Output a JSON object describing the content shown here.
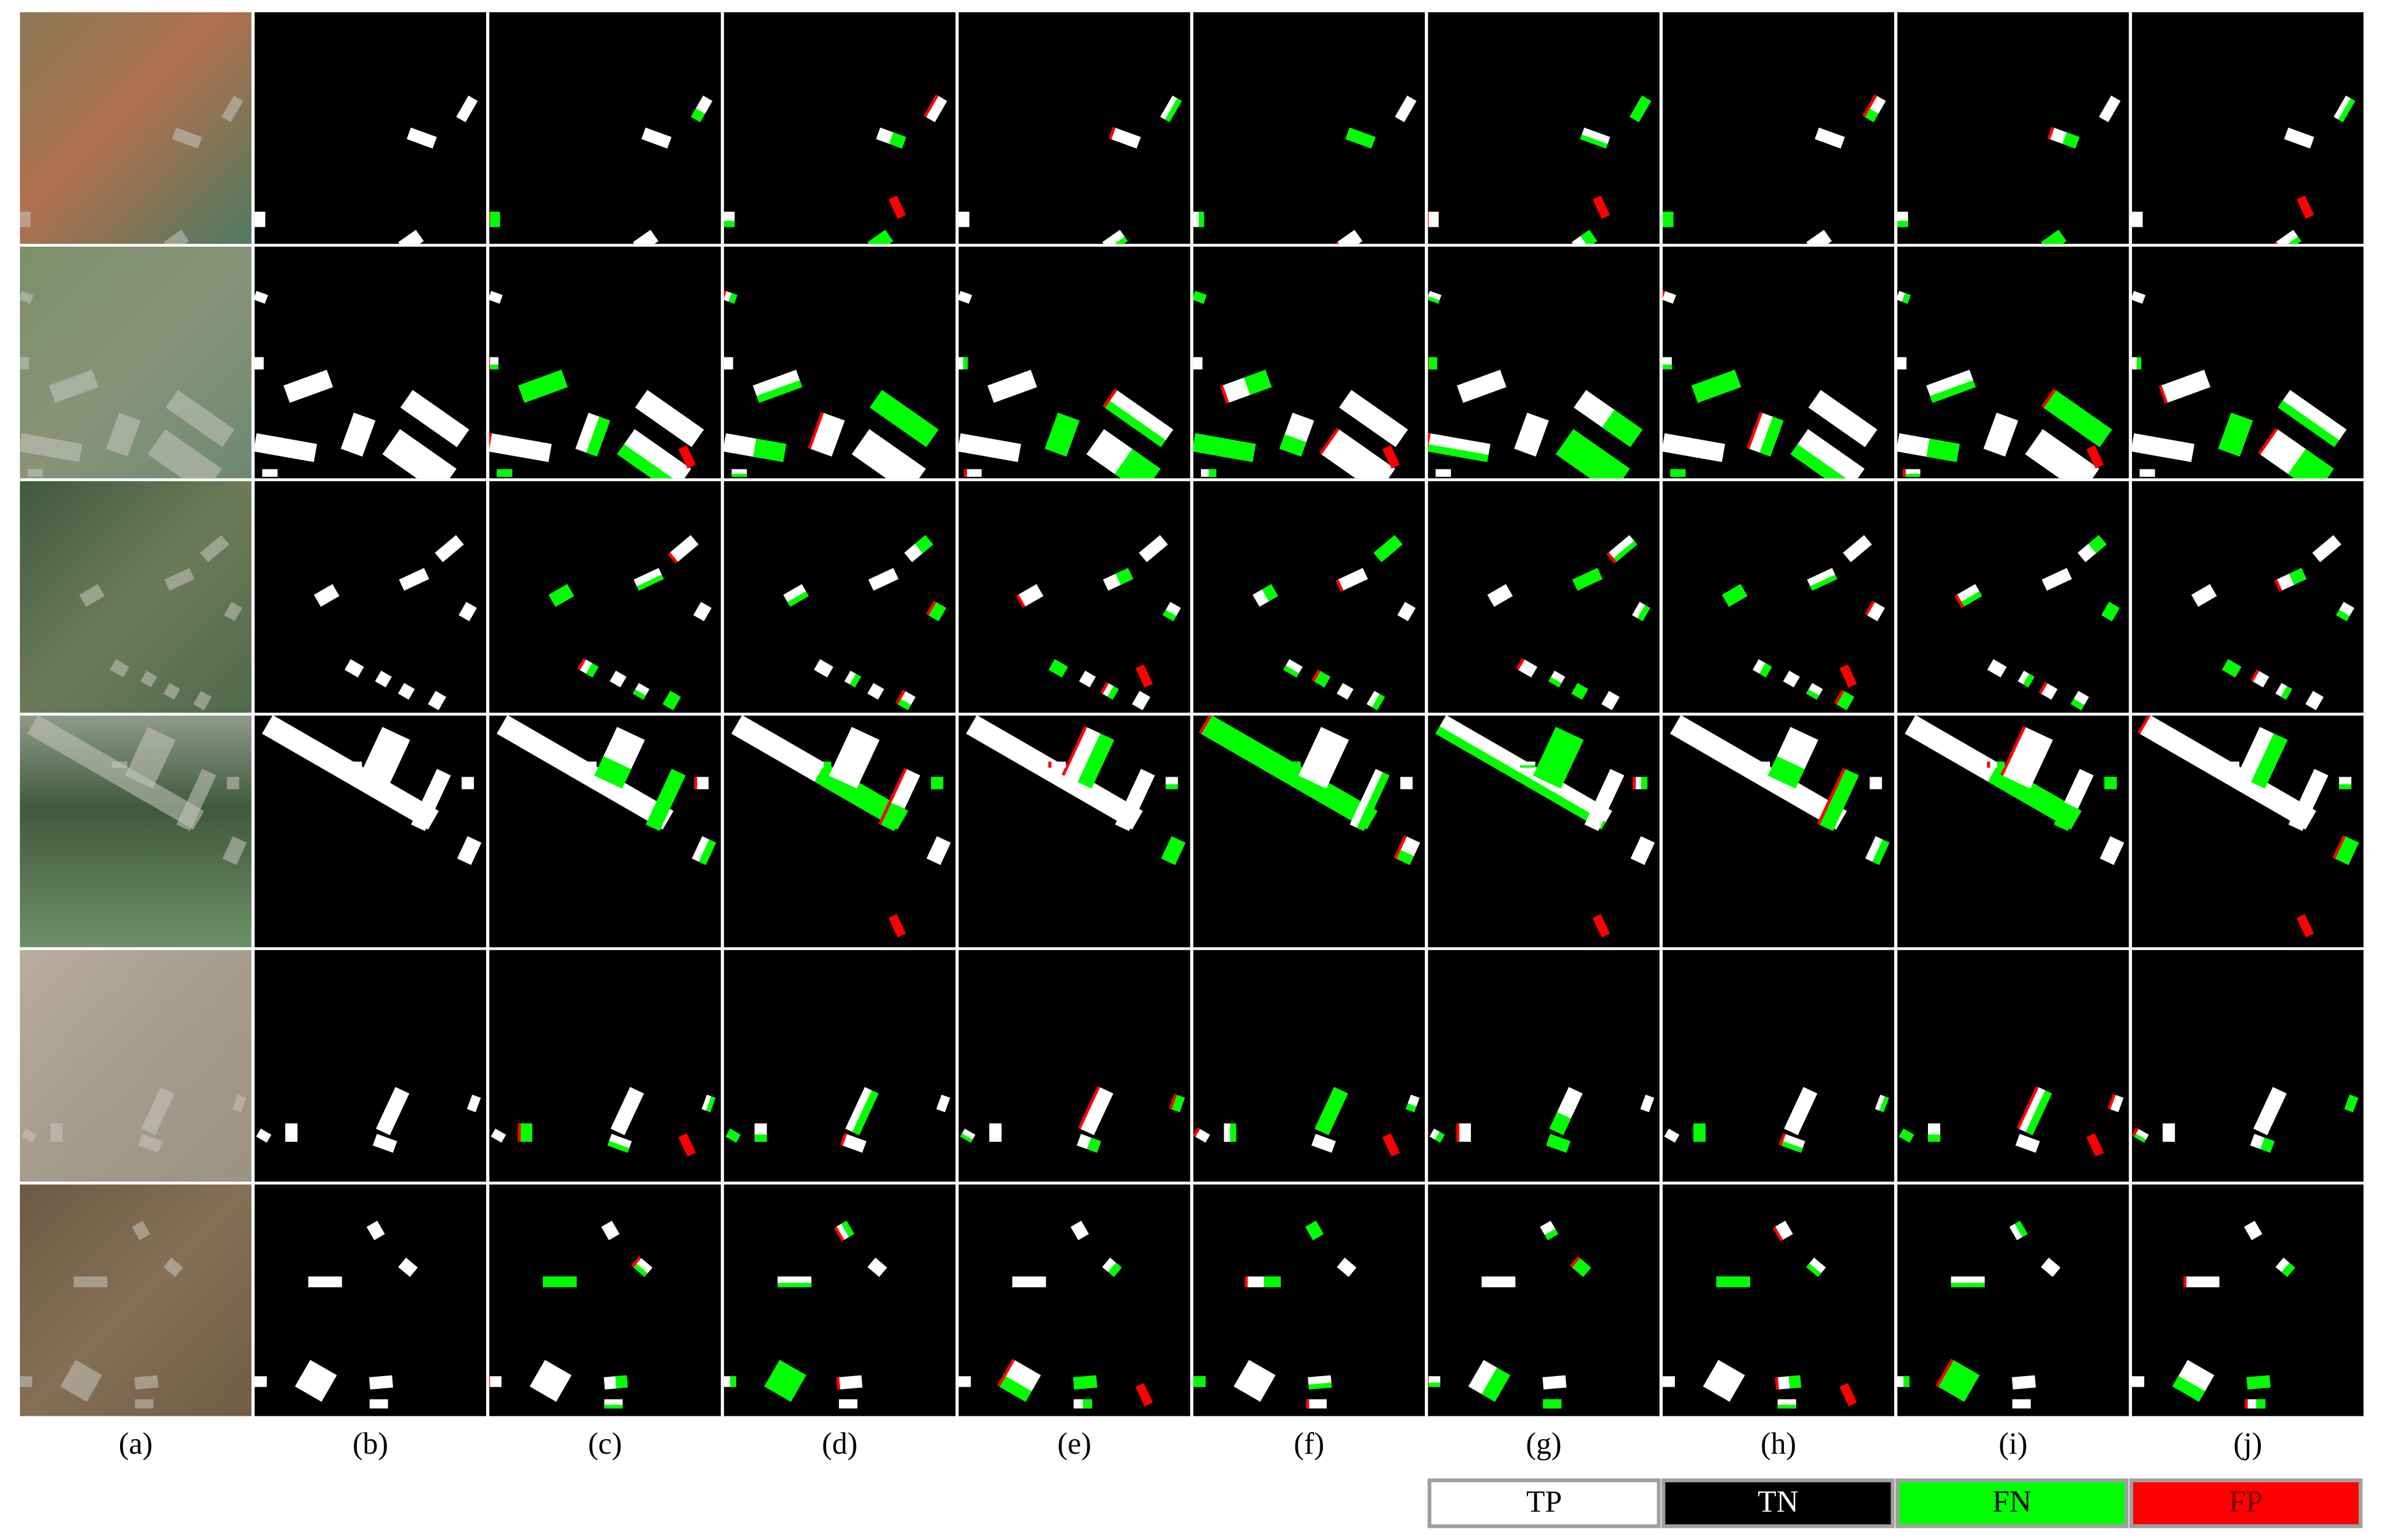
{
  "figure": {
    "columns": [
      "(a)",
      "(b)",
      "(c)",
      "(d)",
      "(e)",
      "(f)",
      "(g)",
      "(h)",
      "(i)",
      "(j)"
    ],
    "legend": [
      {
        "label": "TP",
        "color": "#ffffff"
      },
      {
        "label": "TN",
        "color": "#000000"
      },
      {
        "label": "FN",
        "color": "#00ff00"
      },
      {
        "label": "FP",
        "color": "#ff0000"
      }
    ]
  }
}
